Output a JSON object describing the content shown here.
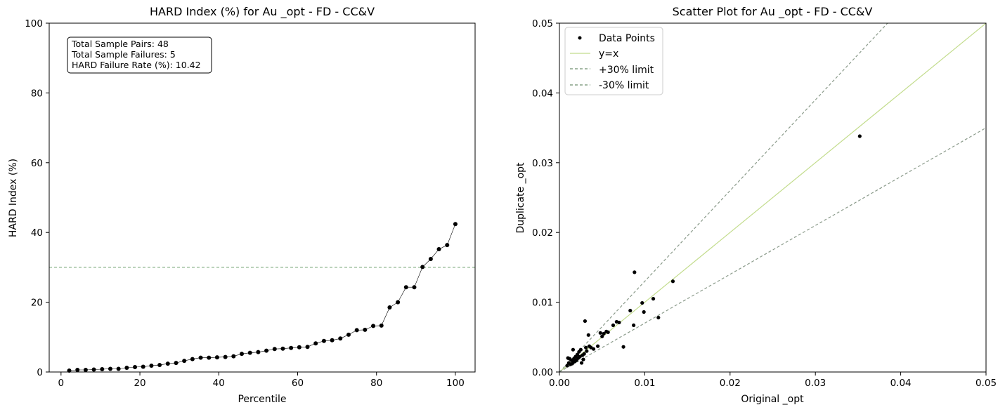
{
  "chart_data": [
    {
      "type": "line",
      "title": "HARD Index (%) for Au _opt - FD - CC&V",
      "xlabel": "Percentile",
      "ylabel": "HARD Index (%)",
      "xlim": [
        -3,
        105
      ],
      "ylim": [
        0,
        100
      ],
      "xticks": [
        0,
        20,
        40,
        60,
        80,
        100
      ],
      "yticks": [
        0,
        20,
        40,
        60,
        80,
        100
      ],
      "threshold_line": {
        "y": 30,
        "color": "#6fa06f",
        "style": "dashed"
      },
      "stats_box": [
        "Total Sample Pairs: 48",
        "Total Sample Failures: 5",
        "HARD Failure Rate (%): 10.42"
      ],
      "series": [
        {
          "name": "HARD Index",
          "color": "#000000",
          "x": [
            2.08,
            4.17,
            6.25,
            8.33,
            10.42,
            12.5,
            14.58,
            16.67,
            18.75,
            20.83,
            22.92,
            25.0,
            27.08,
            29.17,
            31.25,
            33.33,
            35.42,
            37.5,
            39.58,
            41.67,
            43.75,
            45.83,
            47.92,
            50.0,
            52.08,
            54.17,
            56.25,
            58.33,
            60.42,
            62.5,
            64.58,
            66.67,
            68.75,
            70.83,
            72.92,
            75.0,
            77.08,
            79.17,
            81.25,
            83.33,
            85.42,
            87.5,
            89.58,
            91.67,
            93.75,
            95.83,
            97.92,
            100.0
          ],
          "y": [
            0.4,
            0.6,
            0.6,
            0.7,
            0.8,
            0.9,
            0.9,
            1.2,
            1.4,
            1.5,
            1.8,
            2.0,
            2.4,
            2.6,
            3.2,
            3.7,
            4.1,
            4.1,
            4.2,
            4.3,
            4.5,
            5.2,
            5.5,
            5.7,
            6.1,
            6.6,
            6.7,
            6.9,
            7.1,
            7.2,
            8.2,
            8.9,
            9.1,
            9.6,
            10.7,
            12.0,
            12.1,
            13.2,
            13.3,
            18.5,
            20.0,
            24.3,
            24.3,
            30.1,
            32.4,
            35.2,
            36.4,
            42.4
          ]
        }
      ]
    },
    {
      "type": "scatter",
      "title": "Scatter Plot for Au _opt - FD - CC&V",
      "xlabel": "Original _opt",
      "ylabel": "Duplicate _opt",
      "xlim": [
        0.0,
        0.05
      ],
      "ylim": [
        0.0,
        0.05
      ],
      "xticks": [
        0.0,
        0.01,
        0.02,
        0.03,
        0.04,
        0.05
      ],
      "xtick_labels": [
        "0.00",
        "0.01",
        "0.02",
        "0.03",
        "0.04",
        "0.05"
      ],
      "yticks": [
        0.0,
        0.01,
        0.02,
        0.03,
        0.04,
        0.05
      ],
      "ytick_labels": [
        "0.00",
        "0.01",
        "0.02",
        "0.03",
        "0.04",
        "0.05"
      ],
      "legend": [
        {
          "label": "Data Points",
          "kind": "point",
          "color": "#000000"
        },
        {
          "label": "y=x",
          "kind": "line",
          "color": "#c2dc8c"
        },
        {
          "label": "+30% limit",
          "kind": "dashed",
          "color": "#6f8f6f"
        },
        {
          "label": "-30% limit",
          "kind": "dashed",
          "color": "#6f8f6f"
        }
      ],
      "lines": [
        {
          "name": "y=x",
          "slope": 1.0,
          "color": "#c2dc8c",
          "style": "solid"
        },
        {
          "name": "+30% limit",
          "slope": 1.3,
          "color": "#8a9a8a",
          "style": "dashed"
        },
        {
          "name": "-30% limit",
          "slope": 0.7,
          "color": "#8a9a8a",
          "style": "dashed"
        }
      ],
      "series": [
        {
          "name": "Data Points",
          "color": "#000000",
          "points": [
            [
              0.0352,
              0.0338
            ],
            [
              0.0133,
              0.013
            ],
            [
              0.0116,
              0.0078
            ],
            [
              0.011,
              0.0105
            ],
            [
              0.0099,
              0.0086
            ],
            [
              0.0097,
              0.0099
            ],
            [
              0.0088,
              0.0143
            ],
            [
              0.0087,
              0.0067
            ],
            [
              0.0083,
              0.0088
            ],
            [
              0.0075,
              0.0036
            ],
            [
              0.007,
              0.0071
            ],
            [
              0.0067,
              0.0072
            ],
            [
              0.0055,
              0.0058
            ],
            [
              0.0052,
              0.0055
            ],
            [
              0.005,
              0.0051
            ],
            [
              0.0048,
              0.0056
            ],
            [
              0.0045,
              0.0037
            ],
            [
              0.004,
              0.0033
            ],
            [
              0.0037,
              0.0035
            ],
            [
              0.0034,
              0.0053
            ],
            [
              0.0032,
              0.003
            ],
            [
              0.0031,
              0.0035
            ],
            [
              0.003,
              0.0073
            ],
            [
              0.0029,
              0.0026
            ],
            [
              0.0028,
              0.0018
            ],
            [
              0.0027,
              0.0024
            ],
            [
              0.0026,
              0.0013
            ],
            [
              0.0025,
              0.0032
            ],
            [
              0.0023,
              0.0029
            ],
            [
              0.0022,
              0.002
            ],
            [
              0.0021,
              0.0025
            ],
            [
              0.002,
              0.0017
            ],
            [
              0.0019,
              0.0022
            ],
            [
              0.0018,
              0.0015
            ],
            [
              0.0017,
              0.0019
            ],
            [
              0.0016,
              0.0032
            ],
            [
              0.0016,
              0.0014
            ],
            [
              0.0015,
              0.0012
            ],
            [
              0.0014,
              0.0017
            ],
            [
              0.0013,
              0.0011
            ],
            [
              0.0012,
              0.0019
            ],
            [
              0.0011,
              0.0013
            ],
            [
              0.001,
              0.002
            ],
            [
              0.0009,
              0.0009
            ],
            [
              0.0024,
              0.0022
            ],
            [
              0.0035,
              0.0037
            ],
            [
              0.0057,
              0.0057
            ],
            [
              0.0063,
              0.0067
            ]
          ]
        }
      ]
    }
  ]
}
